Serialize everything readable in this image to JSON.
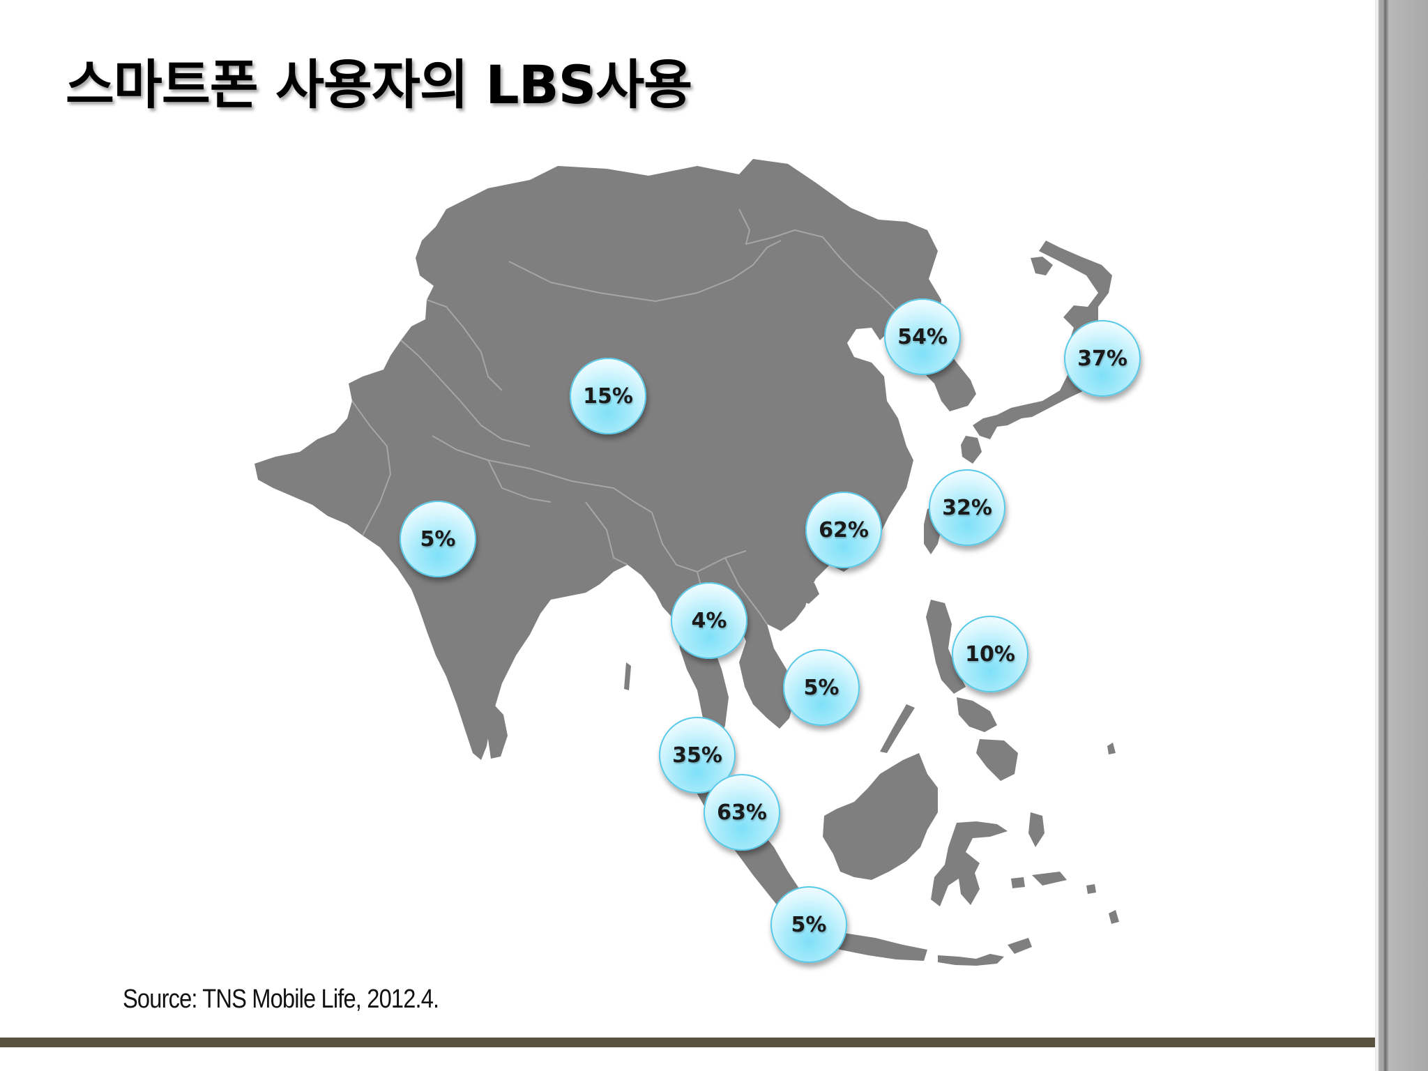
{
  "slide": {
    "title": "스마트폰 사용자의 LBS사용",
    "source": "Source: TNS  Mobile  Life, 2012.4."
  },
  "map": {
    "region": "Asia",
    "land_color": "#7f7f80",
    "border_color": "#a6a6a6",
    "markers": [
      {
        "id": "china",
        "label": "15%"
      },
      {
        "id": "korea",
        "label": "54%"
      },
      {
        "id": "japan",
        "label": "37%"
      },
      {
        "id": "india",
        "label": "5%"
      },
      {
        "id": "hongkong",
        "label": "62%"
      },
      {
        "id": "taiwan",
        "label": "32%"
      },
      {
        "id": "thailand",
        "label": "4%"
      },
      {
        "id": "vietnam",
        "label": "5%"
      },
      {
        "id": "philippines",
        "label": "10%"
      },
      {
        "id": "malaysia",
        "label": "35%"
      },
      {
        "id": "singapore",
        "label": "63%"
      },
      {
        "id": "indonesia",
        "label": "5%"
      }
    ]
  },
  "colors": {
    "bubble_fill": "#a9ebfb",
    "bubble_edge": "#58c9e8",
    "footer_line": "#5a5240"
  }
}
